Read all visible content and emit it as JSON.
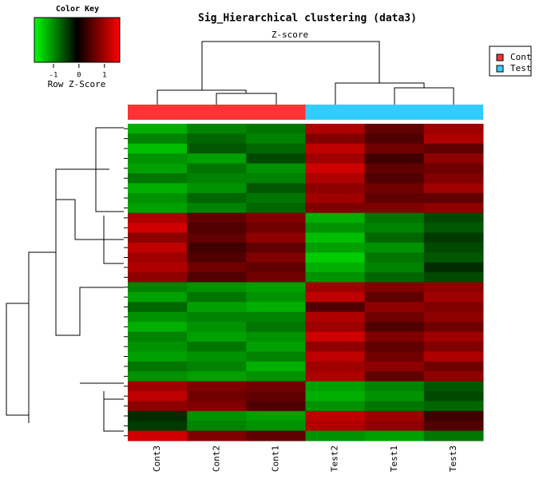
{
  "chart_data": {
    "type": "heatmap",
    "title": "Sig_Hierarchical clustering (data3)",
    "subtitle": "Z-score",
    "columns": [
      "Cont3",
      "Cont2",
      "Cont1",
      "Test2",
      "Test1",
      "Test3"
    ],
    "series": [
      {
        "name": "Cont",
        "color": "#ff3333"
      },
      {
        "name": "Test",
        "color": "#33ccff"
      }
    ],
    "colorscale": [
      "#00ff00",
      "#000000",
      "#ff0000"
    ],
    "color_key": {
      "title": "Color Key",
      "label": "Row Z-Score",
      "xlim": [
        -1.75,
        1.6
      ],
      "xticks": [
        -1,
        0,
        1
      ]
    },
    "values": [
      [
        -1.2,
        -0.9,
        -0.8,
        1.1,
        0.6,
        1.0
      ],
      [
        -0.9,
        -0.7,
        -0.9,
        0.8,
        0.5,
        1.1
      ],
      [
        -1.3,
        -0.6,
        -0.7,
        1.2,
        0.7,
        0.6
      ],
      [
        -1.0,
        -1.1,
        -0.5,
        1.0,
        0.4,
        0.9
      ],
      [
        -1.1,
        -0.8,
        -1.0,
        1.3,
        0.6,
        0.7
      ],
      [
        -0.8,
        -0.9,
        -0.9,
        1.1,
        0.5,
        0.8
      ],
      [
        -1.2,
        -1.0,
        -0.6,
        0.9,
        0.7,
        1.0
      ],
      [
        -1.0,
        -0.7,
        -0.8,
        1.0,
        0.6,
        0.6
      ],
      [
        -1.1,
        -0.9,
        -0.7,
        0.8,
        0.8,
        0.9
      ],
      [
        1.1,
        0.6,
        0.8,
        -1.2,
        -0.8,
        -0.5
      ],
      [
        1.3,
        0.5,
        0.7,
        -1.0,
        -0.9,
        -0.6
      ],
      [
        0.9,
        0.6,
        0.9,
        -1.3,
        -0.7,
        -0.4
      ],
      [
        1.2,
        0.4,
        0.6,
        -1.1,
        -1.0,
        -0.5
      ],
      [
        1.0,
        0.5,
        0.8,
        -1.4,
        -0.8,
        -0.6
      ],
      [
        1.1,
        0.7,
        0.6,
        -1.2,
        -0.9,
        -0.3
      ],
      [
        0.9,
        0.5,
        0.7,
        -1.0,
        -0.7,
        -0.5
      ],
      [
        -0.9,
        -1.0,
        -1.1,
        1.0,
        0.8,
        0.9
      ],
      [
        -1.1,
        -0.8,
        -1.0,
        1.2,
        0.6,
        1.0
      ],
      [
        -0.7,
        -1.1,
        -1.2,
        0.5,
        0.9,
        0.8
      ],
      [
        -1.0,
        -0.9,
        -0.9,
        1.1,
        0.7,
        0.9
      ],
      [
        -1.2,
        -1.0,
        -0.8,
        1.0,
        0.5,
        0.7
      ],
      [
        -0.9,
        -1.1,
        -1.0,
        1.3,
        0.8,
        1.0
      ],
      [
        -1.0,
        -0.8,
        -1.1,
        0.9,
        0.6,
        0.8
      ],
      [
        -1.1,
        -1.0,
        -0.9,
        1.2,
        0.7,
        1.1
      ],
      [
        -0.8,
        -0.9,
        -1.2,
        1.0,
        0.9,
        0.7
      ],
      [
        -1.0,
        -1.1,
        -1.0,
        1.1,
        0.6,
        0.9
      ],
      [
        1.0,
        0.8,
        0.7,
        -1.1,
        -0.9,
        -0.6
      ],
      [
        1.2,
        0.7,
        0.6,
        -1.2,
        -1.0,
        -0.5
      ],
      [
        0.9,
        0.8,
        0.5,
        -1.0,
        -0.8,
        -0.7
      ],
      [
        -0.3,
        -1.0,
        -1.1,
        1.2,
        1.0,
        0.4
      ],
      [
        -0.4,
        -0.9,
        -1.0,
        1.1,
        0.9,
        0.5
      ],
      [
        1.3,
        0.8,
        0.6,
        -1.0,
        -1.1,
        -0.8
      ]
    ]
  }
}
